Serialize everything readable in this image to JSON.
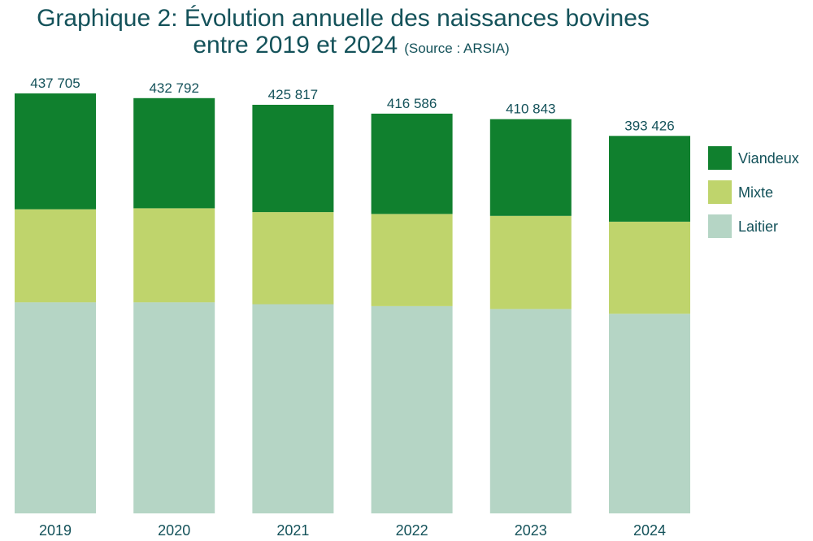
{
  "title": {
    "line1": "Graphique 2: Évolution annuelle des naissances bovines",
    "line2": "entre 2019 et 2024",
    "source": "(Source : ARSIA)"
  },
  "chart_data": {
    "type": "bar",
    "stacked": true,
    "categories": [
      "2019",
      "2020",
      "2021",
      "2022",
      "2023",
      "2024"
    ],
    "totals": [
      437705,
      432792,
      425817,
      416586,
      410843,
      393426
    ],
    "total_labels": [
      "437 705",
      "432 792",
      "425 817",
      "416 586",
      "410 843",
      "393 426"
    ],
    "series": [
      {
        "name": "Laitier",
        "color": "#b5d5c5",
        "values": [
          220000,
          220000,
          218000,
          216000,
          213000,
          208000
        ]
      },
      {
        "name": "Mixte",
        "color": "#bfd46c",
        "values": [
          97000,
          98000,
          96000,
          96000,
          97000,
          96000
        ]
      },
      {
        "name": "Viandeux",
        "color": "#10802e",
        "values": [
          120705,
          114792,
          111817,
          104586,
          100843,
          89426
        ]
      }
    ],
    "legend_order": [
      "Viandeux",
      "Mixte",
      "Laitier"
    ],
    "ylim": [
      0,
      437705
    ],
    "grid": false,
    "legend_position": "right"
  }
}
